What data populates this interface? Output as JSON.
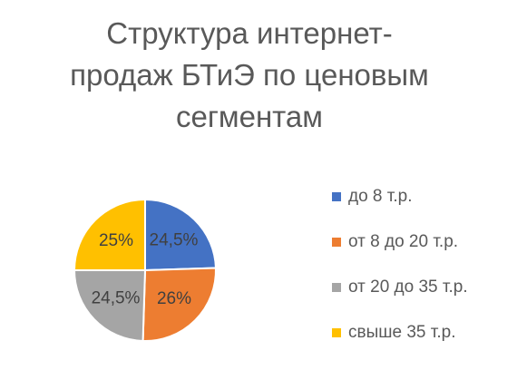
{
  "chart_data": {
    "type": "pie",
    "title": "Структура интернет-продаж БТиЭ по ценовым сегментам",
    "categories": [
      "до 8 т.р.",
      "от 8 до 20 т.р.",
      "от 20 до 35 т.р.",
      "свыше 35 т.р."
    ],
    "values": [
      24.5,
      26,
      24.5,
      25
    ],
    "value_labels": [
      "24,5%",
      "26%",
      "24,5%",
      "25%"
    ],
    "colors": [
      "#4472c4",
      "#ed7d31",
      "#a5a5a5",
      "#ffc000"
    ],
    "legend": "right"
  }
}
